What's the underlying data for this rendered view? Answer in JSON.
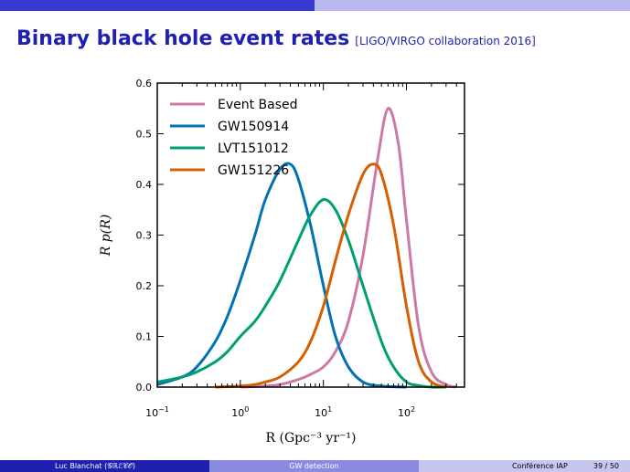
{
  "slide": {
    "title": "Binary black hole event rates",
    "reference": "[LIGO/VIRGO collaboration 2016]",
    "colors": {
      "title": "#1f1fb0",
      "bar_dark": "#3a3ad0",
      "bar_light": "#b8b8ee"
    }
  },
  "footer": {
    "author": "Luc Blanchat (𝒢ℝℰ𝒞𝒪)",
    "topic": "GW detection",
    "event": "Conférence IAP",
    "page": "39 / 50"
  },
  "chart_data": {
    "type": "line",
    "xlabel": "R (Gpc⁻³ yr⁻¹)",
    "ylabel": "R p(R)",
    "xscale": "log",
    "xlim": [
      0.1,
      500
    ],
    "ylim": [
      0,
      0.6
    ],
    "yticks": [
      "0.0",
      "0.1",
      "0.2",
      "0.3",
      "0.4",
      "0.5",
      "0.6"
    ],
    "xticks": [
      {
        "value": 0.1,
        "base": "10",
        "exp": "−1"
      },
      {
        "value": 1,
        "base": "10",
        "exp": "0"
      },
      {
        "value": 10,
        "base": "10",
        "exp": "1"
      },
      {
        "value": 100,
        "base": "10",
        "exp": "2"
      }
    ],
    "legend_position": "top-left",
    "grid": false,
    "series": [
      {
        "name": "Event Based",
        "color": "#cc79a7",
        "x": [
          1,
          2,
          3,
          5,
          7,
          10,
          14,
          20,
          30,
          45,
          60,
          80,
          100,
          140,
          200,
          300,
          400
        ],
        "y": [
          0.0,
          0.002,
          0.005,
          0.015,
          0.025,
          0.04,
          0.07,
          0.13,
          0.26,
          0.45,
          0.55,
          0.48,
          0.33,
          0.12,
          0.03,
          0.005,
          0.0
        ]
      },
      {
        "name": "GW150914",
        "color": "#0072b2",
        "x": [
          0.1,
          0.2,
          0.3,
          0.5,
          0.7,
          1.0,
          1.5,
          2,
          3,
          4,
          5,
          7,
          10,
          14,
          20,
          30,
          50,
          100
        ],
        "y": [
          0.005,
          0.02,
          0.04,
          0.09,
          0.14,
          0.21,
          0.3,
          0.37,
          0.43,
          0.44,
          0.41,
          0.32,
          0.2,
          0.1,
          0.04,
          0.01,
          0.002,
          0.0
        ]
      },
      {
        "name": "LVT151012",
        "color": "#009e73",
        "x": [
          0.1,
          0.2,
          0.3,
          0.5,
          0.7,
          1.0,
          1.5,
          2,
          3,
          5,
          7,
          10,
          14,
          20,
          30,
          50,
          70,
          100,
          140,
          200,
          300
        ],
        "y": [
          0.01,
          0.02,
          0.03,
          0.05,
          0.07,
          0.1,
          0.13,
          0.16,
          0.21,
          0.29,
          0.34,
          0.37,
          0.35,
          0.29,
          0.2,
          0.09,
          0.04,
          0.01,
          0.003,
          0.0,
          0.0
        ]
      },
      {
        "name": "GW151226",
        "color": "#d55e00",
        "x": [
          0.5,
          1,
          1.5,
          2,
          3,
          5,
          7,
          10,
          14,
          20,
          30,
          40,
          50,
          70,
          100,
          140,
          200,
          300
        ],
        "y": [
          0.0,
          0.002,
          0.005,
          0.01,
          0.02,
          0.05,
          0.09,
          0.16,
          0.25,
          0.34,
          0.42,
          0.44,
          0.42,
          0.32,
          0.16,
          0.05,
          0.01,
          0.0
        ]
      }
    ]
  }
}
